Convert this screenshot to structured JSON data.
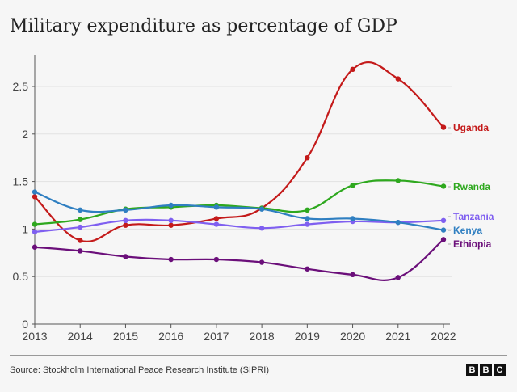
{
  "title": "Military expenditure as percentage of GDP",
  "source": "Source: Stockholm International Peace Research Institute (SIPRI)",
  "logo": "BBC",
  "chart_data": {
    "type": "line",
    "title": "Military expenditure as percentage of GDP",
    "xlabel": "",
    "ylabel": "",
    "x": [
      2013,
      2014,
      2015,
      2016,
      2017,
      2018,
      2019,
      2020,
      2021,
      2022
    ],
    "ylim": [
      0,
      2.8
    ],
    "yticks": [
      "0",
      "0.5",
      "1",
      "1.5",
      "2",
      "2.5"
    ],
    "ytick_values": [
      0,
      0.5,
      1,
      1.5,
      2,
      2.5
    ],
    "grid": true,
    "legend": "direct labels at right",
    "series": [
      {
        "name": "Uganda",
        "color": "#c41a1a",
        "values": [
          1.34,
          0.88,
          1.04,
          1.04,
          1.11,
          1.22,
          1.75,
          2.68,
          2.58,
          2.07
        ]
      },
      {
        "name": "Rwanda",
        "color": "#2ea81e",
        "values": [
          1.05,
          1.1,
          1.21,
          1.23,
          1.25,
          1.22,
          1.2,
          1.46,
          1.51,
          1.45
        ]
      },
      {
        "name": "Tanzania",
        "color": "#7f5ff0",
        "values": [
          0.97,
          1.02,
          1.09,
          1.09,
          1.05,
          1.01,
          1.05,
          1.08,
          1.07,
          1.09
        ]
      },
      {
        "name": "Kenya",
        "color": "#2f7fc1",
        "values": [
          1.39,
          1.2,
          1.2,
          1.25,
          1.23,
          1.21,
          1.11,
          1.11,
          1.07,
          0.99
        ]
      },
      {
        "name": "Ethiopia",
        "color": "#6b0f7a",
        "values": [
          0.81,
          0.77,
          0.71,
          0.68,
          0.68,
          0.65,
          0.58,
          0.52,
          0.49,
          0.89
        ]
      }
    ],
    "label_positions_note": ""
  }
}
